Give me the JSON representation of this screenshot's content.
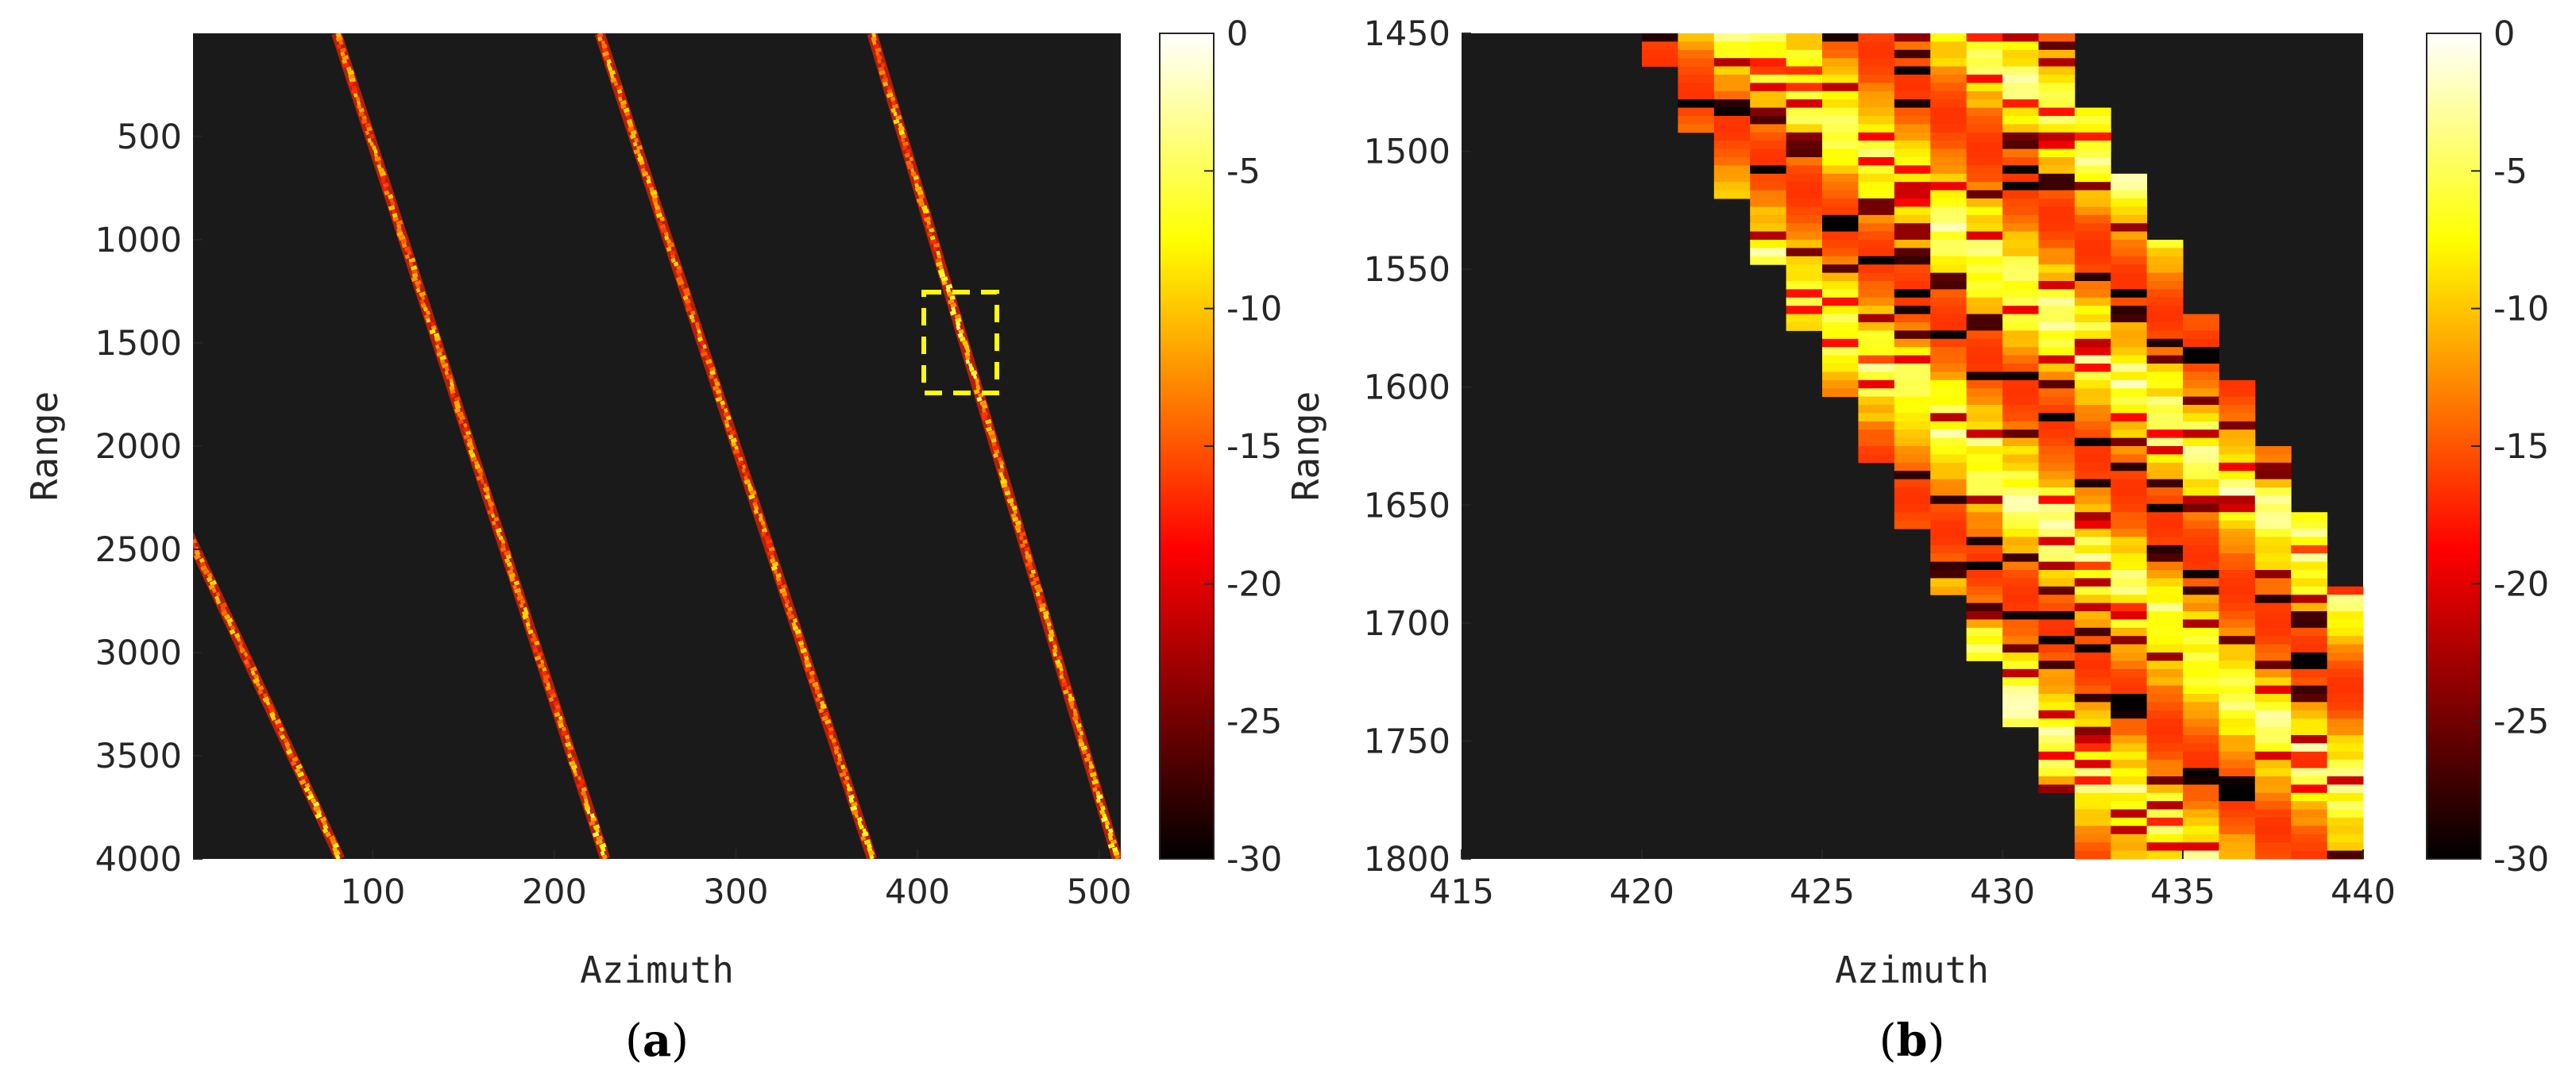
{
  "chart_data": [
    {
      "type": "heatmap",
      "panel_label": "a",
      "xlabel": "Azimuth",
      "ylabel": "Range",
      "xlim": [
        1,
        512
      ],
      "ylim": [
        1,
        4000
      ],
      "y_reversed": true,
      "xticks": [
        100,
        200,
        300,
        400,
        500
      ],
      "yticks": [
        500,
        1000,
        1500,
        2000,
        2500,
        3000,
        3500,
        4000
      ],
      "background_db": -30,
      "colormap": "hot",
      "colorbar": {
        "clim": [
          -30,
          0
        ],
        "ticks": [
          0,
          -5,
          -10,
          -15,
          -20,
          -25,
          -30
        ],
        "position": "right"
      },
      "tracks": [
        {
          "x_top": -130,
          "x_bottom": 82
        },
        {
          "x_top": 80,
          "x_bottom": 228
        },
        {
          "x_top": 225,
          "x_bottom": 375
        },
        {
          "x_top": 375,
          "x_bottom": 510
        }
      ],
      "highlight_box": {
        "x": [
          405,
          440
        ],
        "y": [
          1250,
          1740
        ],
        "color": "#ffff00",
        "style": "dashed"
      }
    },
    {
      "type": "heatmap",
      "panel_label": "b",
      "xlabel": "Azimuth",
      "ylabel": "Range",
      "xlim": [
        415,
        440
      ],
      "ylim": [
        1450,
        1800
      ],
      "y_reversed": true,
      "xticks": [
        415,
        420,
        425,
        430,
        435,
        440
      ],
      "yticks": [
        1450,
        1500,
        1550,
        1600,
        1650,
        1700,
        1750,
        1800
      ],
      "background_db": -30,
      "colormap": "hot",
      "colorbar": {
        "clim": [
          -30,
          0
        ],
        "ticks": [
          0,
          -5,
          -10,
          -15,
          -20,
          -25,
          -30
        ],
        "position": "right"
      },
      "band": {
        "left_edge": [
          [
            420.5,
            1450
          ],
          [
            433,
            1800
          ]
        ],
        "right_edge": [
          [
            431,
            1450
          ],
          [
            440,
            1710
          ]
        ]
      }
    }
  ]
}
